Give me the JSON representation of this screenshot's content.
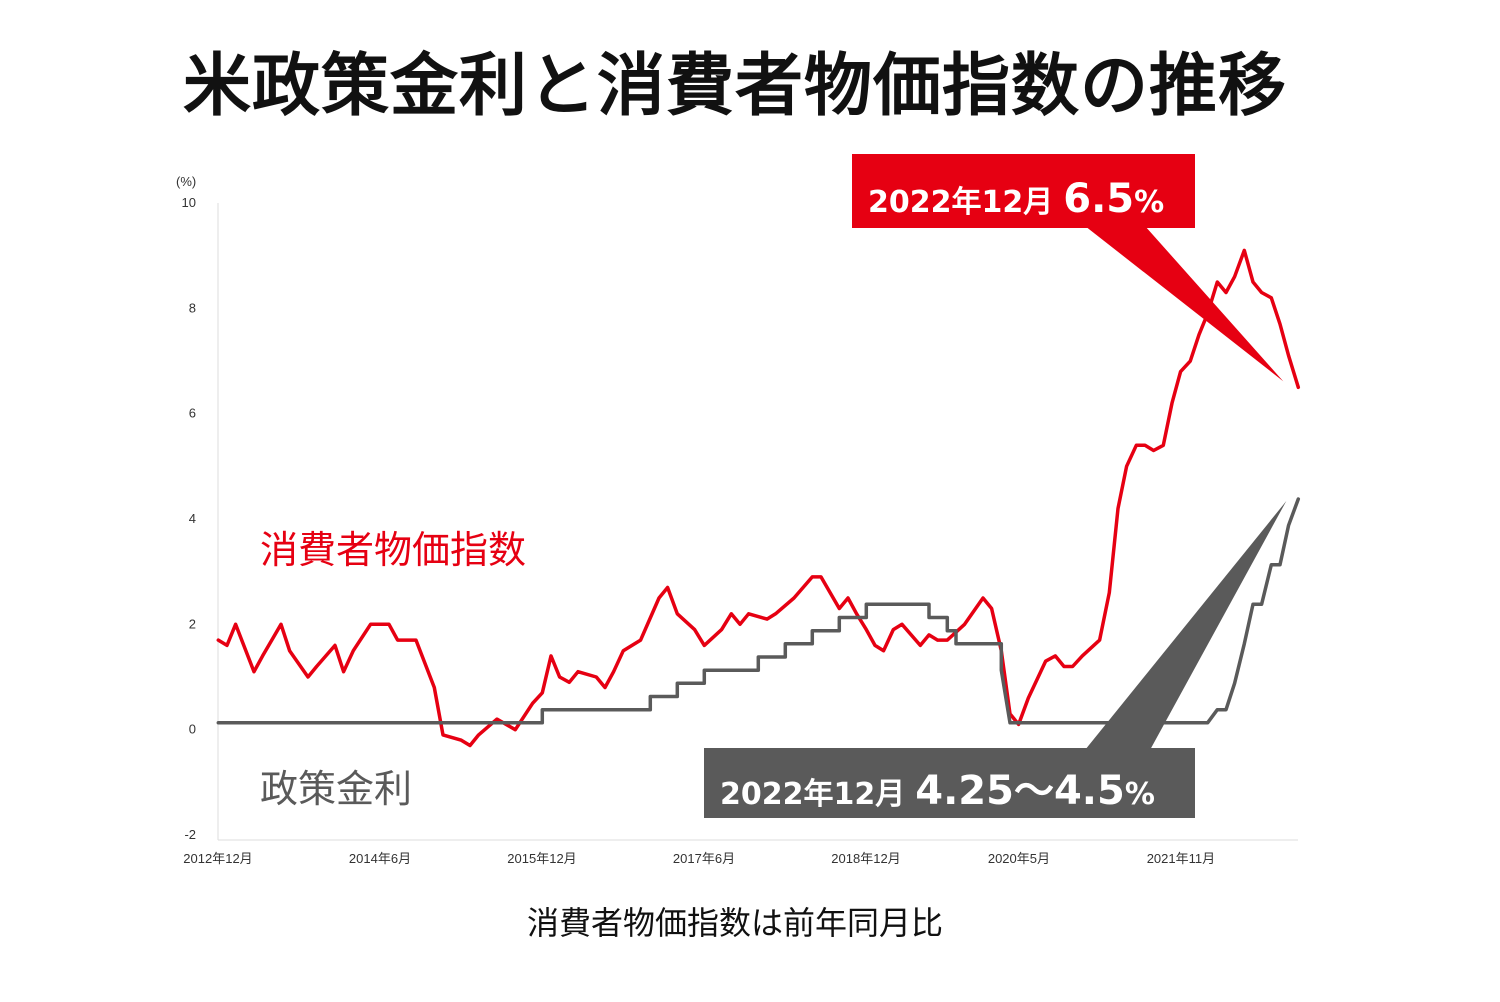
{
  "title": "米政策金利と消費者物価指数の推移",
  "footnote": "消費者物価指数は前年同月比",
  "callouts": {
    "cpi": {
      "date": "2022年12月",
      "value": "6.5",
      "unit": "%"
    },
    "rate": {
      "date": "2022年12月",
      "value": "4.25〜4.5",
      "unit": "%"
    }
  },
  "colors": {
    "cpi": "#e60012",
    "rate": "#5a5a5a",
    "axis": "#dddddd"
  },
  "chart_data": {
    "type": "line",
    "ylabel": "(%)",
    "ylim": [
      -2,
      10
    ],
    "yticks": [
      10,
      8,
      6,
      4,
      2,
      0,
      -2
    ],
    "xlim": [
      2012.917,
      2022.917
    ],
    "xticks": [
      {
        "label": "2012年12月",
        "value": 2012.917
      },
      {
        "label": "2014年6月",
        "value": 2014.417
      },
      {
        "label": "2015年12月",
        "value": 2015.917
      },
      {
        "label": "2017年6月",
        "value": 2017.417
      },
      {
        "label": "2018年12月",
        "value": 2018.917
      },
      {
        "label": "2020年5月",
        "value": 2020.333
      },
      {
        "label": "2021年11月",
        "value": 2021.833
      }
    ],
    "series": [
      {
        "name": "消費者物価指数",
        "points": [
          [
            2012.92,
            1.7
          ],
          [
            2013.0,
            1.6
          ],
          [
            2013.08,
            2.0
          ],
          [
            2013.25,
            1.1
          ],
          [
            2013.33,
            1.4
          ],
          [
            2013.5,
            2.0
          ],
          [
            2013.58,
            1.5
          ],
          [
            2013.75,
            1.0
          ],
          [
            2013.83,
            1.2
          ],
          [
            2014.0,
            1.6
          ],
          [
            2014.08,
            1.1
          ],
          [
            2014.17,
            1.5
          ],
          [
            2014.33,
            2.0
          ],
          [
            2014.5,
            2.0
          ],
          [
            2014.58,
            1.7
          ],
          [
            2014.75,
            1.7
          ],
          [
            2014.92,
            0.8
          ],
          [
            2015.0,
            -0.1
          ],
          [
            2015.17,
            -0.2
          ],
          [
            2015.25,
            -0.3
          ],
          [
            2015.33,
            -0.1
          ],
          [
            2015.5,
            0.2
          ],
          [
            2015.67,
            0.0
          ],
          [
            2015.83,
            0.5
          ],
          [
            2015.92,
            0.7
          ],
          [
            2016.0,
            1.4
          ],
          [
            2016.08,
            1.0
          ],
          [
            2016.17,
            0.9
          ],
          [
            2016.25,
            1.1
          ],
          [
            2016.42,
            1.0
          ],
          [
            2016.5,
            0.8
          ],
          [
            2016.58,
            1.1
          ],
          [
            2016.67,
            1.5
          ],
          [
            2016.83,
            1.7
          ],
          [
            2017.0,
            2.5
          ],
          [
            2017.08,
            2.7
          ],
          [
            2017.17,
            2.2
          ],
          [
            2017.33,
            1.9
          ],
          [
            2017.42,
            1.6
          ],
          [
            2017.58,
            1.9
          ],
          [
            2017.67,
            2.2
          ],
          [
            2017.75,
            2.0
          ],
          [
            2017.83,
            2.2
          ],
          [
            2018.0,
            2.1
          ],
          [
            2018.08,
            2.2
          ],
          [
            2018.25,
            2.5
          ],
          [
            2018.42,
            2.9
          ],
          [
            2018.5,
            2.9
          ],
          [
            2018.67,
            2.3
          ],
          [
            2018.75,
            2.5
          ],
          [
            2018.83,
            2.2
          ],
          [
            2018.92,
            1.9
          ],
          [
            2019.0,
            1.6
          ],
          [
            2019.08,
            1.5
          ],
          [
            2019.17,
            1.9
          ],
          [
            2019.25,
            2.0
          ],
          [
            2019.42,
            1.6
          ],
          [
            2019.5,
            1.8
          ],
          [
            2019.58,
            1.7
          ],
          [
            2019.67,
            1.7
          ],
          [
            2019.83,
            2.0
          ],
          [
            2020.0,
            2.5
          ],
          [
            2020.08,
            2.3
          ],
          [
            2020.17,
            1.5
          ],
          [
            2020.25,
            0.3
          ],
          [
            2020.33,
            0.1
          ],
          [
            2020.42,
            0.6
          ],
          [
            2020.58,
            1.3
          ],
          [
            2020.67,
            1.4
          ],
          [
            2020.75,
            1.2
          ],
          [
            2020.83,
            1.2
          ],
          [
            2020.92,
            1.4
          ],
          [
            2021.08,
            1.7
          ],
          [
            2021.17,
            2.6
          ],
          [
            2021.25,
            4.2
          ],
          [
            2021.33,
            5.0
          ],
          [
            2021.42,
            5.4
          ],
          [
            2021.5,
            5.4
          ],
          [
            2021.58,
            5.3
          ],
          [
            2021.67,
            5.4
          ],
          [
            2021.75,
            6.2
          ],
          [
            2021.83,
            6.8
          ],
          [
            2021.92,
            7.0
          ],
          [
            2022.0,
            7.5
          ],
          [
            2022.08,
            7.9
          ],
          [
            2022.17,
            8.5
          ],
          [
            2022.25,
            8.3
          ],
          [
            2022.33,
            8.6
          ],
          [
            2022.42,
            9.1
          ],
          [
            2022.5,
            8.5
          ],
          [
            2022.58,
            8.3
          ],
          [
            2022.67,
            8.2
          ],
          [
            2022.75,
            7.7
          ],
          [
            2022.83,
            7.1
          ],
          [
            2022.92,
            6.5
          ]
        ]
      },
      {
        "name": "政策金利",
        "points": [
          [
            2012.92,
            0.13
          ],
          [
            2015.92,
            0.13
          ],
          [
            2015.92,
            0.38
          ],
          [
            2016.92,
            0.38
          ],
          [
            2016.92,
            0.63
          ],
          [
            2017.17,
            0.63
          ],
          [
            2017.17,
            0.88
          ],
          [
            2017.42,
            0.88
          ],
          [
            2017.42,
            1.13
          ],
          [
            2017.92,
            1.13
          ],
          [
            2017.92,
            1.38
          ],
          [
            2018.17,
            1.38
          ],
          [
            2018.17,
            1.63
          ],
          [
            2018.42,
            1.63
          ],
          [
            2018.42,
            1.88
          ],
          [
            2018.67,
            1.88
          ],
          [
            2018.67,
            2.13
          ],
          [
            2018.92,
            2.13
          ],
          [
            2018.92,
            2.38
          ],
          [
            2019.5,
            2.38
          ],
          [
            2019.5,
            2.13
          ],
          [
            2019.67,
            2.13
          ],
          [
            2019.67,
            1.88
          ],
          [
            2019.75,
            1.88
          ],
          [
            2019.75,
            1.63
          ],
          [
            2020.17,
            1.63
          ],
          [
            2020.17,
            1.13
          ],
          [
            2020.25,
            0.13
          ],
          [
            2022.08,
            0.13
          ],
          [
            2022.17,
            0.38
          ],
          [
            2022.25,
            0.38
          ],
          [
            2022.33,
            0.88
          ],
          [
            2022.42,
            1.63
          ],
          [
            2022.5,
            2.38
          ],
          [
            2022.58,
            2.38
          ],
          [
            2022.67,
            3.13
          ],
          [
            2022.75,
            3.13
          ],
          [
            2022.83,
            3.88
          ],
          [
            2022.92,
            4.38
          ]
        ]
      }
    ]
  }
}
